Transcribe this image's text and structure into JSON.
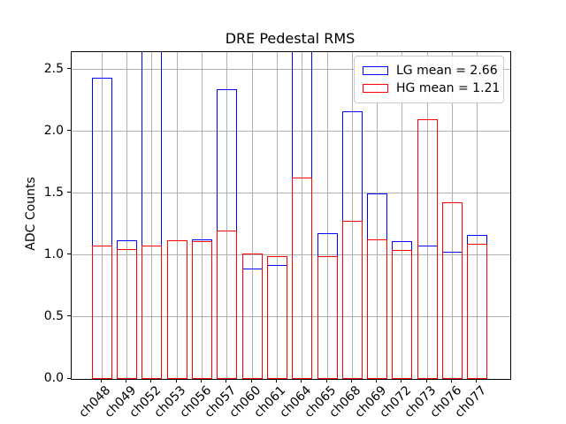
{
  "chart_data": {
    "type": "bar",
    "title": "DRE Pedestal RMS",
    "xlabel": "",
    "ylabel": "ADC Counts",
    "categories": [
      "ch048",
      "ch049",
      "ch052",
      "ch053",
      "ch056",
      "ch057",
      "ch060",
      "ch061",
      "ch064",
      "ch065",
      "ch068",
      "ch069",
      "ch072",
      "ch073",
      "ch076",
      "ch077"
    ],
    "series": [
      {
        "name": "LG mean = 2.66",
        "color": "#0000ff",
        "values": [
          2.43,
          1.12,
          ">2.64",
          1.12,
          1.13,
          2.34,
          0.89,
          0.92,
          ">2.64",
          1.18,
          2.16,
          1.5,
          1.11,
          1.08,
          1.03,
          1.16
        ]
      },
      {
        "name": "HG mean = 1.21",
        "color": "#ff0000",
        "values": [
          1.08,
          1.05,
          1.08,
          1.12,
          1.11,
          1.2,
          1.01,
          0.99,
          1.63,
          0.99,
          1.28,
          1.13,
          1.04,
          2.1,
          1.43,
          1.09
        ]
      }
    ],
    "bar_style": "unfilled-outline",
    "ylim": [
      0,
      2.64
    ],
    "yticks": [
      "0.0",
      "0.5",
      "1.0",
      "1.5",
      "2.0",
      "2.5"
    ],
    "grid": true,
    "legend_position": "upper right",
    "clipped_note": "LG bars for ch052 and ch064 extend above the top of the axes",
    "grid_color": "#b0b0b0"
  }
}
